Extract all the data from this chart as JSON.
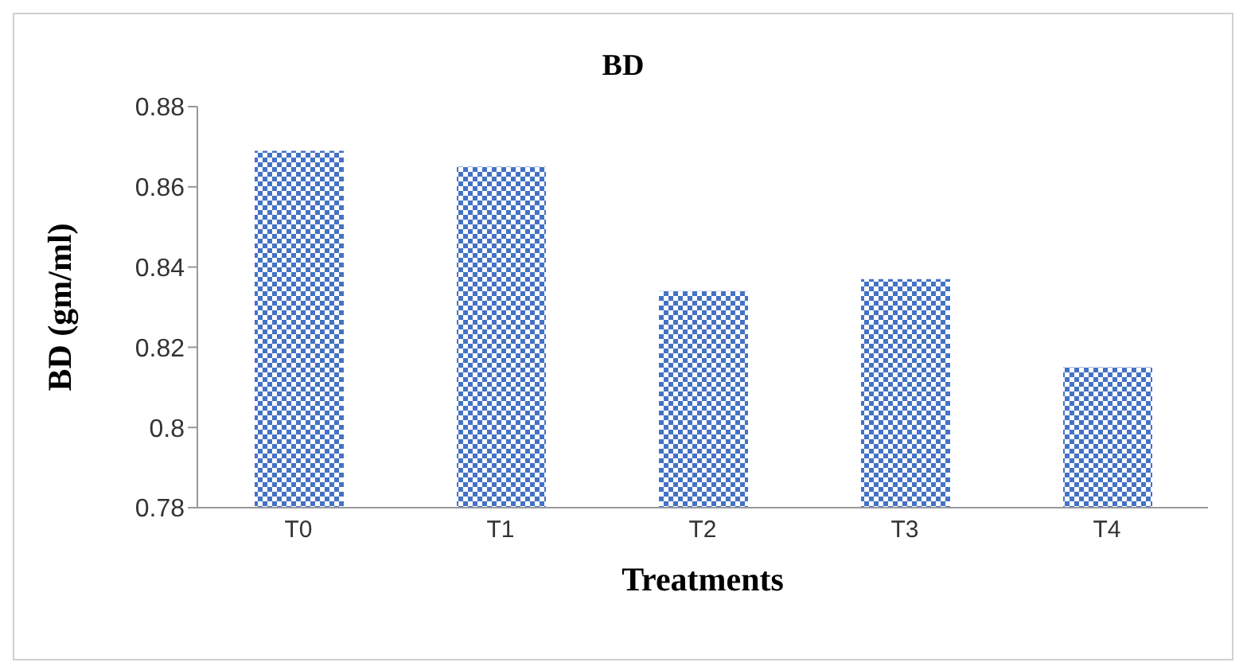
{
  "chart_data": {
    "type": "bar",
    "title": "BD",
    "xlabel": "Treatments",
    "ylabel": "BD (gm/ml)",
    "categories": [
      "T0",
      "T1",
      "T2",
      "T3",
      "T4"
    ],
    "values": [
      0.869,
      0.865,
      0.834,
      0.837,
      0.815
    ],
    "color": "#4472c4",
    "ylim": [
      0.78,
      0.88
    ],
    "yticks": [
      0.78,
      0.8,
      0.82,
      0.84,
      0.86,
      0.88
    ],
    "grid": false
  }
}
